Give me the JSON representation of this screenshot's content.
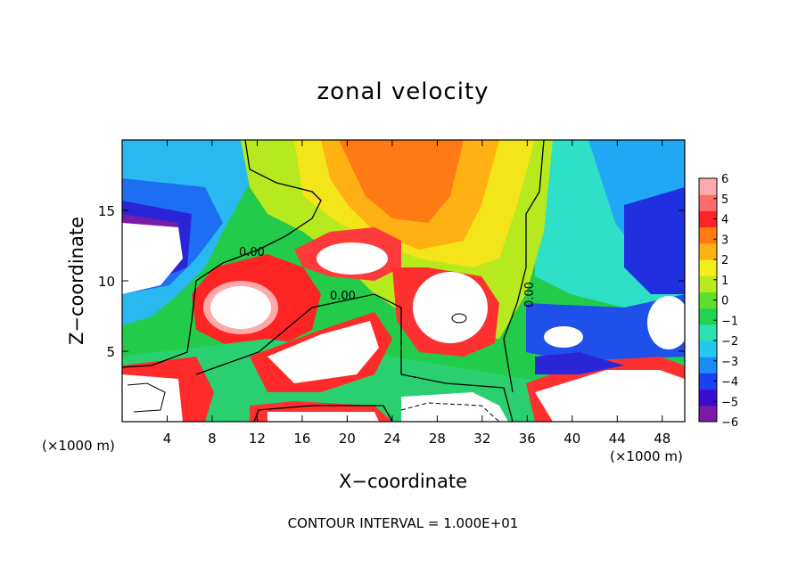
{
  "chart_data": {
    "type": "heatmap",
    "title": "zonal velocity",
    "xlabel": "X−coordinate",
    "ylabel": "Z−coordinate",
    "x_unit_note": "(×1000 m)",
    "y_unit_note": "(×1000 m)",
    "xlim": [
      0,
      50
    ],
    "ylim": [
      0,
      20
    ],
    "x_ticks": [
      4,
      8,
      12,
      16,
      20,
      24,
      28,
      32,
      36,
      40,
      44,
      48
    ],
    "y_ticks": [
      5,
      10,
      15
    ],
    "colorbar": {
      "ticks": [
        6,
        5,
        4,
        3,
        2,
        1,
        0,
        -1,
        -2,
        -3,
        -4,
        -5,
        -6
      ],
      "tick_labels": [
        "6",
        "5",
        "4",
        "3",
        "2",
        "1",
        "0",
        "−1",
        "−2",
        "−3",
        "−4",
        "−5",
        "−6"
      ],
      "range": [
        -6,
        6
      ],
      "colors": [
        "#7a1aa8",
        "#3a0ed0",
        "#1a3ef2",
        "#1b8cf5",
        "#22c8f0",
        "#2ce0b0",
        "#22d250",
        "#5ee02a",
        "#b8ea1e",
        "#f4ee1a",
        "#ffb012",
        "#ff7a14",
        "#ff2424",
        "#ff6a6a",
        "#ffaaaa"
      ]
    },
    "contour_labels": [
      "0.00",
      "0.00",
      "0.00"
    ],
    "footer": "CONTOUR INTERVAL =  1.000E+01"
  }
}
